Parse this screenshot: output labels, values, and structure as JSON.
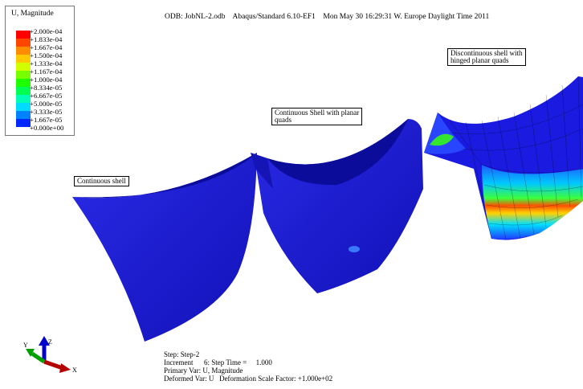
{
  "header": {
    "odb": "ODB: JobNL-2.odb",
    "solver": "Abaqus/Standard 6.10-EF1",
    "date": "Mon May 30 16:29:31 W. Europe Daylight Time 2011"
  },
  "legend": {
    "title": "U, Magnitude",
    "entries": [
      {
        "label": "+2.000e-04",
        "color": "#ff0000"
      },
      {
        "label": "+1.833e-04",
        "color": "#ff4600"
      },
      {
        "label": "+1.667e-04",
        "color": "#ff8c00"
      },
      {
        "label": "+1.500e-04",
        "color": "#ffc800"
      },
      {
        "label": "+1.333e-04",
        "color": "#d2ff00"
      },
      {
        "label": "+1.167e-04",
        "color": "#78ff00"
      },
      {
        "label": "+1.000e-04",
        "color": "#1eff00"
      },
      {
        "label": "+8.334e-05",
        "color": "#00ff50"
      },
      {
        "label": "+6.667e-05",
        "color": "#00ffb4"
      },
      {
        "label": "+5.000e-05",
        "color": "#00dcff"
      },
      {
        "label": "+3.333e-05",
        "color": "#0082ff"
      },
      {
        "label": "+1.667e-05",
        "color": "#0028ff"
      },
      {
        "label": "+0.000e+00",
        "color": "#0000cc"
      }
    ]
  },
  "callouts": {
    "continuous": "Continuous shell",
    "planar_l1": "Continuous Shell with planar",
    "planar_l2": "quads",
    "hinged_l1": "Discontinuous shell with",
    "hinged_l2": "hinged planar quads"
  },
  "triad": {
    "x": "X",
    "y": "Y",
    "z": "Z"
  },
  "step_info": {
    "step": "Step: Step-2",
    "increment": "Increment      6: Step Time =     1.000",
    "primary": "Primary Var: U, Magnitude",
    "deformed": "Deformed Var: U   Deformation Scale Factor: +1.000e+02"
  },
  "colors": {
    "shell": "#1a1ad9",
    "shell_dark": "#0f0fa8",
    "mesh": "#000000"
  }
}
